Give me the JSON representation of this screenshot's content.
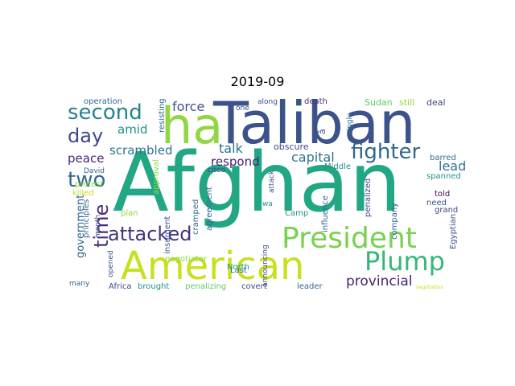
{
  "title": "2019-09",
  "palette": [
    "#3b4f8c",
    "#2e9e8a",
    "#44b37b",
    "#c8dd34",
    "#8fd04e",
    "#3a7ea1",
    "#472c7a",
    "#6bcf66",
    "#29788e",
    "#2a668e",
    "#3f4788",
    "#1f958b"
  ],
  "words": [
    {
      "text": "Afghan",
      "color": "#22a784"
    },
    {
      "text": "Taliban",
      "color": "#3b528b"
    },
    {
      "text": "American",
      "color": "#c8e020"
    },
    {
      "text": "ha",
      "color": "#90d743"
    },
    {
      "text": "President",
      "color": "#7ad151"
    },
    {
      "text": "Plump",
      "color": "#35b779"
    },
    {
      "text": "fighter",
      "color": "#31688e"
    },
    {
      "text": "second",
      "color": "#26828e"
    },
    {
      "text": "day",
      "color": "#3e4989"
    },
    {
      "text": "two",
      "color": "#31688e"
    },
    {
      "text": "time",
      "color": "#472d7b"
    },
    {
      "text": "attacked",
      "color": "#46337e"
    },
    {
      "text": "provincial",
      "color": "#482475"
    },
    {
      "text": "force",
      "color": "#3b528b"
    },
    {
      "text": "amid",
      "color": "#21918c"
    },
    {
      "text": "scrambled",
      "color": "#2c728e"
    },
    {
      "text": "talk",
      "color": "#2c728e"
    },
    {
      "text": "respond",
      "color": "#482173"
    },
    {
      "text": "capital",
      "color": "#2c728e"
    },
    {
      "text": "lead",
      "color": "#2c728e"
    },
    {
      "text": "peace",
      "color": "#482475"
    },
    {
      "text": "government",
      "color": "#31688e"
    },
    {
      "text": "operation",
      "color": "#31688e"
    },
    {
      "text": "resisting",
      "color": "#31688e"
    },
    {
      "text": "one",
      "color": "#3e4989"
    },
    {
      "text": "along",
      "color": "#3b528b"
    },
    {
      "text": "death",
      "color": "#46337e"
    },
    {
      "text": "Sudan",
      "color": "#5ec962"
    },
    {
      "text": "still",
      "color": "#90d743"
    },
    {
      "text": "deal",
      "color": "#414487"
    },
    {
      "text": "â",
      "color": "#3b528b"
    },
    {
      "text": "single",
      "color": "#2c728e"
    },
    {
      "text": "obscure",
      "color": "#3e4989"
    },
    {
      "text": "Middle",
      "color": "#21918c"
    },
    {
      "text": "barred",
      "color": "#2c728e"
    },
    {
      "text": "spanned",
      "color": "#21918c"
    },
    {
      "text": "told",
      "color": "#440154"
    },
    {
      "text": "need",
      "color": "#3b528b"
    },
    {
      "text": "grand",
      "color": "#414487"
    },
    {
      "text": "David",
      "color": "#31688e"
    },
    {
      "text": "protest",
      "color": "#90d743"
    },
    {
      "text": "killed",
      "color": "#c8e020"
    },
    {
      "text": "principles",
      "color": "#31688e"
    },
    {
      "text": "month",
      "color": "#3b528b"
    },
    {
      "text": "approval",
      "color": "#8fd744"
    },
    {
      "text": "cited",
      "color": "#3e4989"
    },
    {
      "text": "cramped",
      "color": "#31688e"
    },
    {
      "text": "agreement",
      "color": "#31688e"
    },
    {
      "text": "insurgent",
      "color": "#3b528b"
    },
    {
      "text": "plan",
      "color": "#90d743"
    },
    {
      "text": "wa",
      "color": "#21918c"
    },
    {
      "text": "Camp",
      "color": "#21918c"
    },
    {
      "text": "attack",
      "color": "#3b528b"
    },
    {
      "text": "influence",
      "color": "#31688e"
    },
    {
      "text": "penalized",
      "color": "#3e4989"
    },
    {
      "text": "company",
      "color": "#31688e"
    },
    {
      "text": "Egyptian",
      "color": "#3b528b"
    },
    {
      "text": "negotiator",
      "color": "#8fd744"
    },
    {
      "text": "opened",
      "color": "#3b528b"
    },
    {
      "text": "Last",
      "color": "#31688e"
    },
    {
      "text": "announcing",
      "color": "#3e4989"
    },
    {
      "text": "North",
      "color": "#21918c"
    },
    {
      "text": "many",
      "color": "#31688e"
    },
    {
      "text": "Africa",
      "color": "#3e4989"
    },
    {
      "text": "brought",
      "color": "#21918c"
    },
    {
      "text": "penalizing",
      "color": "#5ec962"
    },
    {
      "text": "covert",
      "color": "#3e4989"
    },
    {
      "text": "leader",
      "color": "#31688e"
    },
    {
      "text": "negotiation",
      "color": "#c8e020"
    }
  ]
}
